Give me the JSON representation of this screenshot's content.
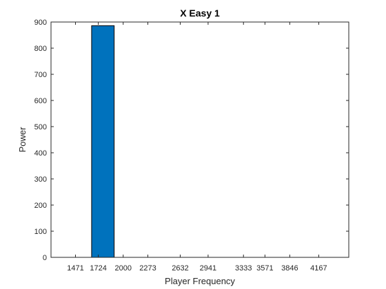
{
  "chart_data": {
    "type": "bar",
    "title": "X Easy 1",
    "xlabel": "Player Frequency",
    "ylabel": "Power",
    "ylim": [
      0,
      900
    ],
    "yticks": [
      0,
      100,
      200,
      300,
      400,
      500,
      600,
      700,
      800,
      900
    ],
    "categories": [
      "1471",
      "1724",
      "2000",
      "2273",
      "2632",
      "2941",
      "3333",
      "3571",
      "3846",
      "4167"
    ],
    "tick_positions_hz": [
      1471,
      1724,
      2000,
      2273,
      2632,
      2941,
      3333,
      3571,
      3846,
      4167
    ],
    "xlim": [
      1200,
      4500
    ],
    "bars": [
      {
        "x_from": 1650,
        "x_to": 1900,
        "value": 886
      }
    ],
    "bar_color": "#0072BD",
    "grid": false,
    "legend": "none"
  }
}
